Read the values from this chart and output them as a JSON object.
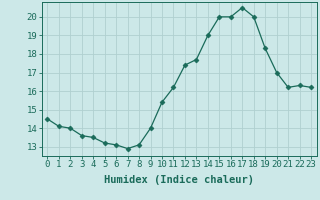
{
  "x": [
    0,
    1,
    2,
    3,
    4,
    5,
    6,
    7,
    8,
    9,
    10,
    11,
    12,
    13,
    14,
    15,
    16,
    17,
    18,
    19,
    20,
    21,
    22,
    23
  ],
  "y": [
    14.5,
    14.1,
    14.0,
    13.6,
    13.5,
    13.2,
    13.1,
    12.9,
    13.1,
    14.0,
    15.4,
    16.2,
    17.4,
    17.7,
    19.0,
    20.0,
    20.0,
    20.5,
    20.0,
    18.3,
    17.0,
    16.2,
    16.3,
    16.2
  ],
  "xlabel": "Humidex (Indice chaleur)",
  "line_color": "#1a6b5a",
  "marker": "D",
  "marker_size": 2.5,
  "bg_color": "#cce8e8",
  "grid_color": "#b0d0d0",
  "ylim": [
    12.5,
    20.8
  ],
  "yticks": [
    13,
    14,
    15,
    16,
    17,
    18,
    19,
    20
  ],
  "xticks": [
    0,
    1,
    2,
    3,
    4,
    5,
    6,
    7,
    8,
    9,
    10,
    11,
    12,
    13,
    14,
    15,
    16,
    17,
    18,
    19,
    20,
    21,
    22,
    23
  ],
  "tick_color": "#1a6b5a",
  "xlabel_fontsize": 7.5,
  "tick_fontsize": 6.5
}
